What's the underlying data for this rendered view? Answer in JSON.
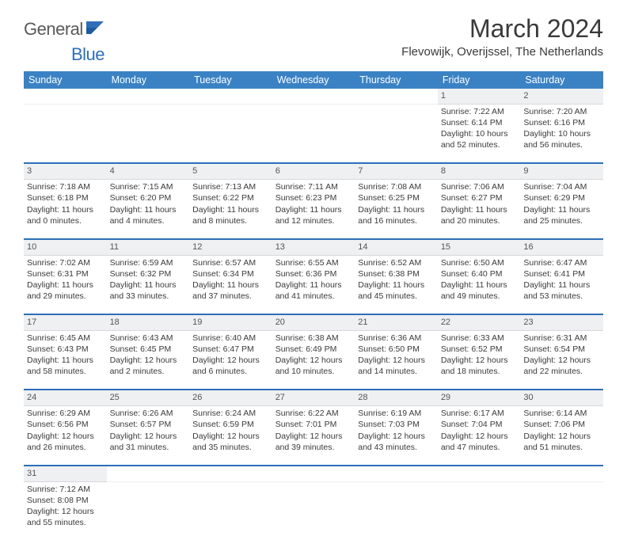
{
  "brand": {
    "part1": "General",
    "part2": "Blue"
  },
  "title": "March 2024",
  "location": "Flevowijk, Overijssel, The Netherlands",
  "colors": {
    "header_bg": "#3b82c4",
    "header_text": "#ffffff",
    "accent": "#2e6fb8",
    "daynum_bg": "#eef0f2",
    "text": "#3a3a3a",
    "background": "#ffffff"
  },
  "day_headers": [
    "Sunday",
    "Monday",
    "Tuesday",
    "Wednesday",
    "Thursday",
    "Friday",
    "Saturday"
  ],
  "weeks": [
    [
      null,
      null,
      null,
      null,
      null,
      {
        "n": "1",
        "sr": "7:22 AM",
        "ss": "6:14 PM",
        "dl": "10 hours and 52 minutes."
      },
      {
        "n": "2",
        "sr": "7:20 AM",
        "ss": "6:16 PM",
        "dl": "10 hours and 56 minutes."
      }
    ],
    [
      {
        "n": "3",
        "sr": "7:18 AM",
        "ss": "6:18 PM",
        "dl": "11 hours and 0 minutes."
      },
      {
        "n": "4",
        "sr": "7:15 AM",
        "ss": "6:20 PM",
        "dl": "11 hours and 4 minutes."
      },
      {
        "n": "5",
        "sr": "7:13 AM",
        "ss": "6:22 PM",
        "dl": "11 hours and 8 minutes."
      },
      {
        "n": "6",
        "sr": "7:11 AM",
        "ss": "6:23 PM",
        "dl": "11 hours and 12 minutes."
      },
      {
        "n": "7",
        "sr": "7:08 AM",
        "ss": "6:25 PM",
        "dl": "11 hours and 16 minutes."
      },
      {
        "n": "8",
        "sr": "7:06 AM",
        "ss": "6:27 PM",
        "dl": "11 hours and 20 minutes."
      },
      {
        "n": "9",
        "sr": "7:04 AM",
        "ss": "6:29 PM",
        "dl": "11 hours and 25 minutes."
      }
    ],
    [
      {
        "n": "10",
        "sr": "7:02 AM",
        "ss": "6:31 PM",
        "dl": "11 hours and 29 minutes."
      },
      {
        "n": "11",
        "sr": "6:59 AM",
        "ss": "6:32 PM",
        "dl": "11 hours and 33 minutes."
      },
      {
        "n": "12",
        "sr": "6:57 AM",
        "ss": "6:34 PM",
        "dl": "11 hours and 37 minutes."
      },
      {
        "n": "13",
        "sr": "6:55 AM",
        "ss": "6:36 PM",
        "dl": "11 hours and 41 minutes."
      },
      {
        "n": "14",
        "sr": "6:52 AM",
        "ss": "6:38 PM",
        "dl": "11 hours and 45 minutes."
      },
      {
        "n": "15",
        "sr": "6:50 AM",
        "ss": "6:40 PM",
        "dl": "11 hours and 49 minutes."
      },
      {
        "n": "16",
        "sr": "6:47 AM",
        "ss": "6:41 PM",
        "dl": "11 hours and 53 minutes."
      }
    ],
    [
      {
        "n": "17",
        "sr": "6:45 AM",
        "ss": "6:43 PM",
        "dl": "11 hours and 58 minutes."
      },
      {
        "n": "18",
        "sr": "6:43 AM",
        "ss": "6:45 PM",
        "dl": "12 hours and 2 minutes."
      },
      {
        "n": "19",
        "sr": "6:40 AM",
        "ss": "6:47 PM",
        "dl": "12 hours and 6 minutes."
      },
      {
        "n": "20",
        "sr": "6:38 AM",
        "ss": "6:49 PM",
        "dl": "12 hours and 10 minutes."
      },
      {
        "n": "21",
        "sr": "6:36 AM",
        "ss": "6:50 PM",
        "dl": "12 hours and 14 minutes."
      },
      {
        "n": "22",
        "sr": "6:33 AM",
        "ss": "6:52 PM",
        "dl": "12 hours and 18 minutes."
      },
      {
        "n": "23",
        "sr": "6:31 AM",
        "ss": "6:54 PM",
        "dl": "12 hours and 22 minutes."
      }
    ],
    [
      {
        "n": "24",
        "sr": "6:29 AM",
        "ss": "6:56 PM",
        "dl": "12 hours and 26 minutes."
      },
      {
        "n": "25",
        "sr": "6:26 AM",
        "ss": "6:57 PM",
        "dl": "12 hours and 31 minutes."
      },
      {
        "n": "26",
        "sr": "6:24 AM",
        "ss": "6:59 PM",
        "dl": "12 hours and 35 minutes."
      },
      {
        "n": "27",
        "sr": "6:22 AM",
        "ss": "7:01 PM",
        "dl": "12 hours and 39 minutes."
      },
      {
        "n": "28",
        "sr": "6:19 AM",
        "ss": "7:03 PM",
        "dl": "12 hours and 43 minutes."
      },
      {
        "n": "29",
        "sr": "6:17 AM",
        "ss": "7:04 PM",
        "dl": "12 hours and 47 minutes."
      },
      {
        "n": "30",
        "sr": "6:14 AM",
        "ss": "7:06 PM",
        "dl": "12 hours and 51 minutes."
      }
    ],
    [
      {
        "n": "31",
        "sr": "7:12 AM",
        "ss": "8:08 PM",
        "dl": "12 hours and 55 minutes."
      },
      null,
      null,
      null,
      null,
      null,
      null
    ]
  ],
  "labels": {
    "sunrise": "Sunrise:",
    "sunset": "Sunset:",
    "daylight": "Daylight:"
  }
}
